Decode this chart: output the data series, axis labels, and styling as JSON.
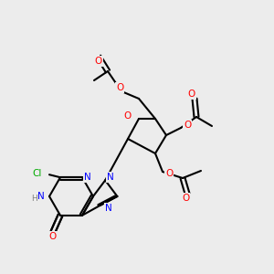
{
  "bg_color": "#ececec",
  "bond_color": "#000000",
  "atom_colors": {
    "O": "#ff0000",
    "N": "#0000ff",
    "Cl": "#00aa00",
    "C": "#000000",
    "H": "#808080"
  },
  "font_size": 7.5
}
